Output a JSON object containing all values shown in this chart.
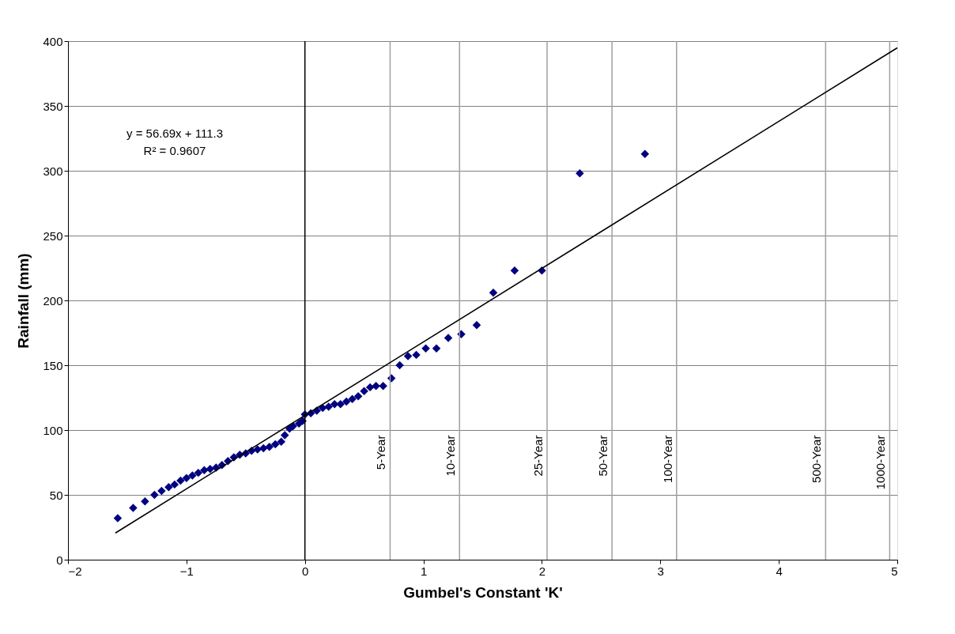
{
  "chart_data": {
    "type": "scatter",
    "xlabel": "Gumbel's Constant 'K'",
    "ylabel": "Rainfall (mm)",
    "xlim": [
      -2,
      5
    ],
    "xticks": [
      -2,
      -1,
      0,
      1,
      2,
      3,
      4,
      5
    ],
    "ylim": [
      0,
      400
    ],
    "yticks": [
      0,
      50,
      100,
      150,
      200,
      250,
      300,
      350,
      400
    ],
    "grid": "y",
    "marker": "diamond",
    "series": [
      {
        "color": "#000080",
        "x": [
          -1.58,
          -1.45,
          -1.35,
          -1.27,
          -1.21,
          -1.15,
          -1.1,
          -1.05,
          -1.0,
          -0.95,
          -0.9,
          -0.85,
          -0.8,
          -0.75,
          -0.7,
          -0.65,
          -0.6,
          -0.55,
          -0.5,
          -0.45,
          -0.4,
          -0.35,
          -0.3,
          -0.25,
          -0.2,
          -0.17,
          -0.13,
          -0.1,
          -0.05,
          -0.02,
          0.0,
          0.05,
          0.1,
          0.15,
          0.2,
          0.25,
          0.3,
          0.35,
          0.4,
          0.45,
          0.5,
          0.55,
          0.6,
          0.66,
          0.73,
          0.8,
          0.87,
          0.94,
          1.02,
          1.11,
          1.21,
          1.32,
          1.45,
          1.59,
          1.77,
          2.0,
          2.32,
          2.87
        ],
        "values": [
          32,
          40,
          45,
          50,
          53,
          56,
          58,
          61,
          63,
          65,
          67,
          69,
          70,
          71,
          73,
          76,
          79,
          81,
          82,
          84,
          85,
          86,
          87,
          89,
          91,
          96,
          101,
          103,
          105,
          107,
          112,
          113,
          115,
          117,
          118,
          120,
          120,
          122,
          124,
          126,
          130,
          133,
          134,
          134,
          140,
          150,
          157,
          158,
          163,
          163,
          171,
          174,
          181,
          206,
          223,
          223,
          298,
          313
        ]
      },
      {
        "type": "line",
        "marker": "none",
        "color": "#000000",
        "x": [
          -1.6,
          5
        ],
        "values": [
          20.6,
          394.8
        ]
      }
    ],
    "ref_lines": [
      {
        "axis": "x",
        "value": 0,
        "color": "#000000"
      },
      {
        "axis": "x",
        "value": 0.719,
        "label": "5-Year",
        "color": "#a0a0a0"
      },
      {
        "axis": "x",
        "value": 1.305,
        "label": "10-Year",
        "color": "#a0a0a0"
      },
      {
        "axis": "x",
        "value": 2.044,
        "label": "25-Year",
        "color": "#a0a0a0"
      },
      {
        "axis": "x",
        "value": 2.592,
        "label": "50-Year",
        "color": "#a0a0a0"
      },
      {
        "axis": "x",
        "value": 3.137,
        "label": "100-Year",
        "color": "#a0a0a0"
      },
      {
        "axis": "x",
        "value": 4.395,
        "label": "500-Year",
        "color": "#a0a0a0"
      },
      {
        "axis": "x",
        "value": 4.936,
        "label": "1000-Year",
        "color": "#a0a0a0"
      }
    ],
    "annotations": [
      "y = 56.69x + 111.3",
      "R² = 0.9607"
    ]
  }
}
